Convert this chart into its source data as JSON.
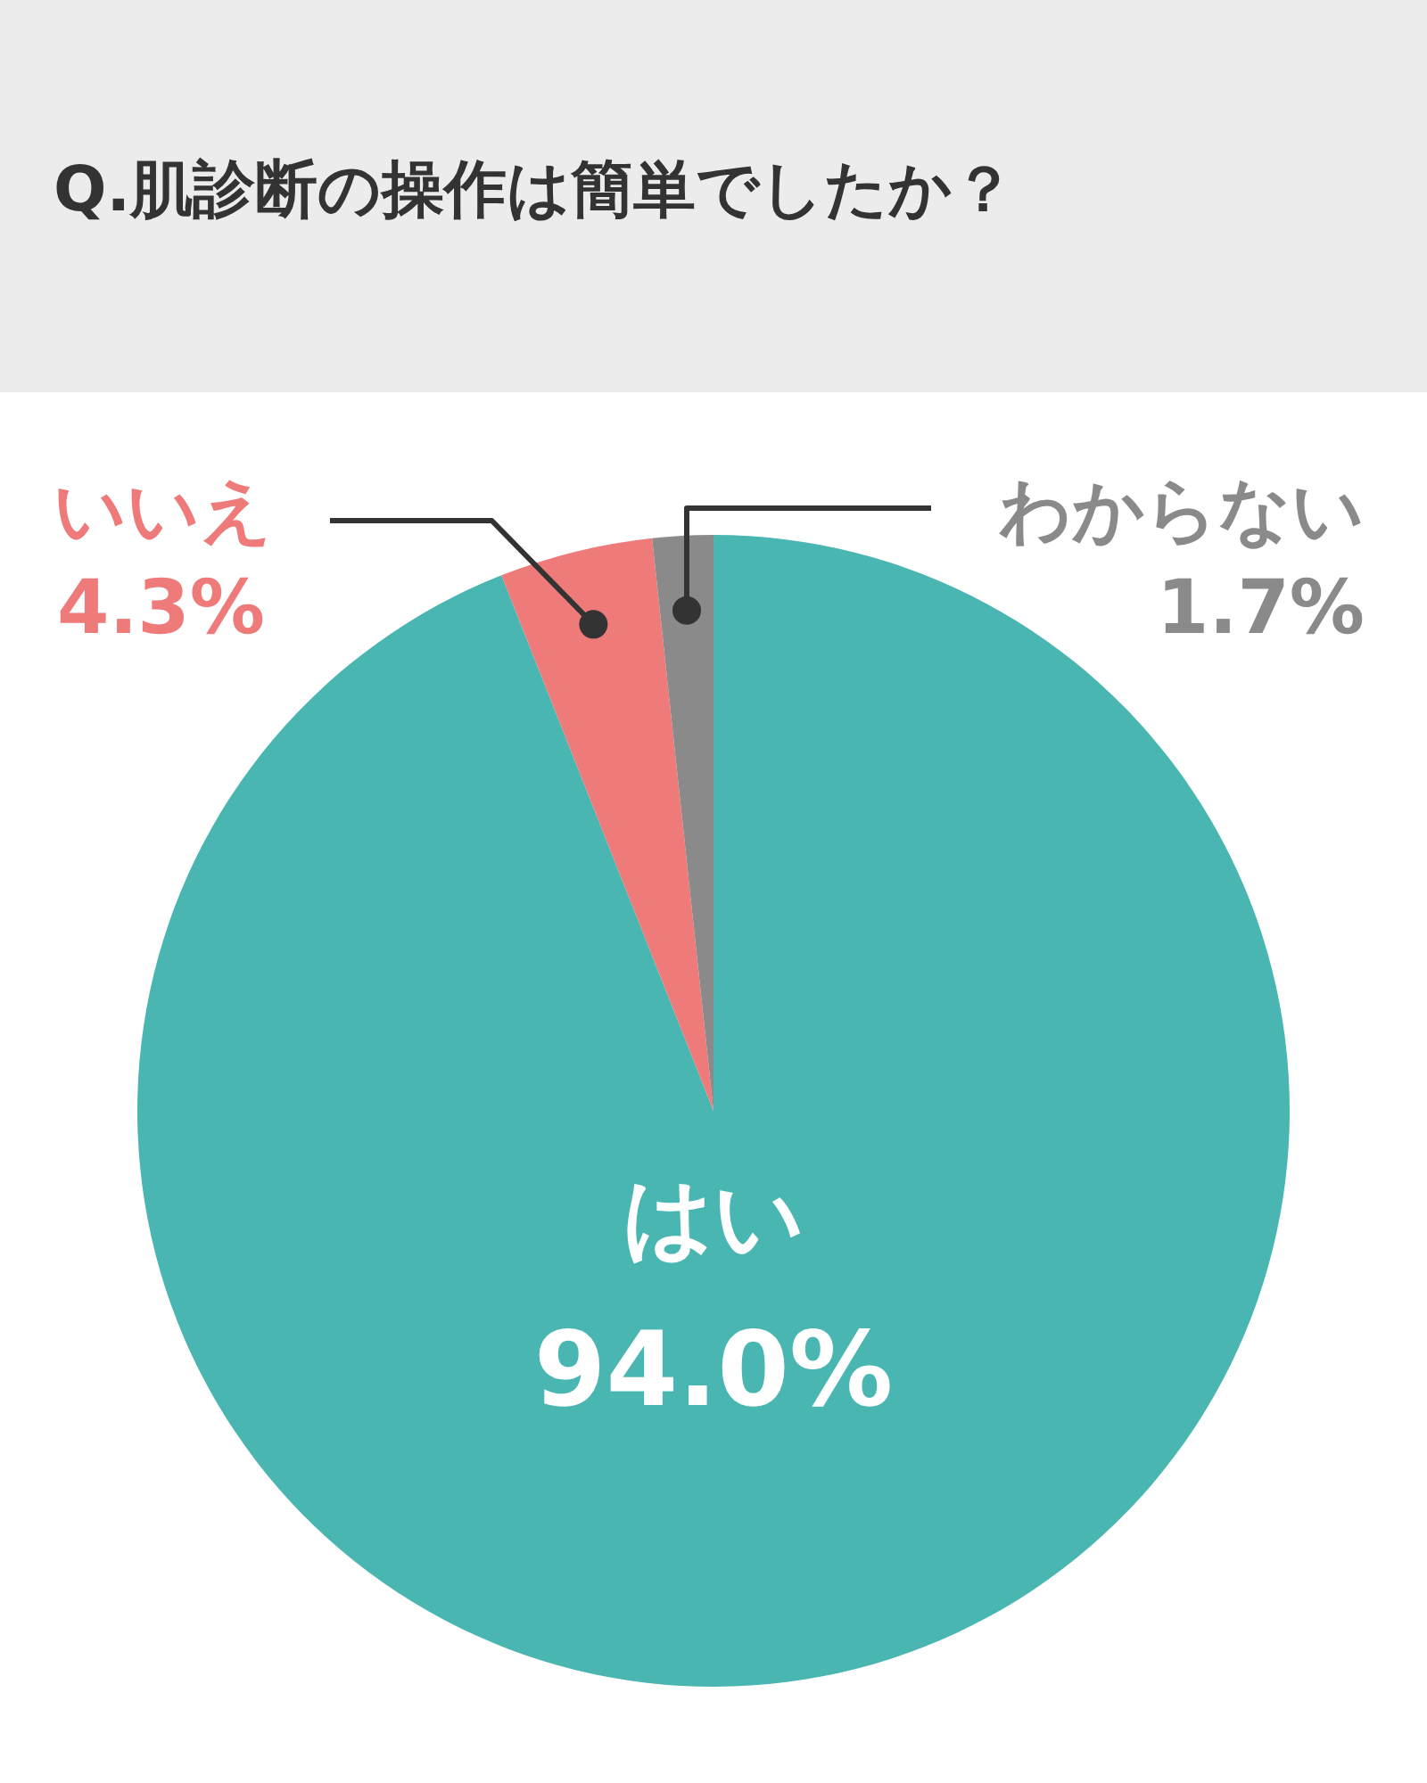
{
  "chart_data": {
    "type": "pie",
    "title": "Q.肌診断の操作は簡単でしたか？",
    "categories": [
      "はい",
      "いいえ",
      "わからない"
    ],
    "values": [
      94.0,
      4.3,
      1.7
    ],
    "value_labels": [
      "94.0%",
      "4.3%",
      "1.7%"
    ],
    "colors": [
      "#49b6b1",
      "#ee7a7a",
      "#8a8a8a"
    ]
  }
}
